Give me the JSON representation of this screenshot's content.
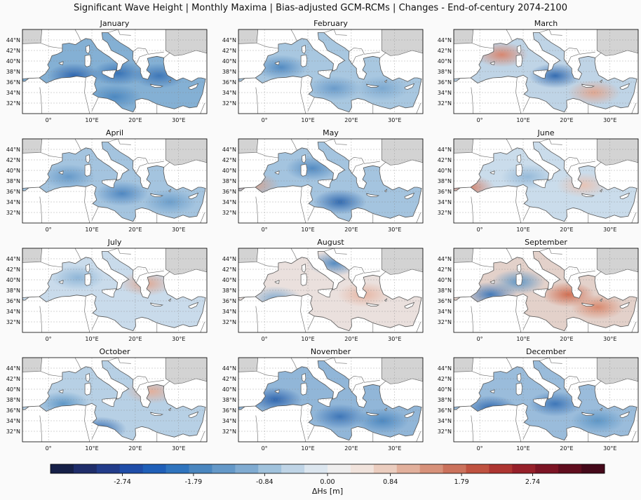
{
  "figure": {
    "title": "Significant Wave Height | Monthly Maxima | Bias-adjusted GCM-RCMs | Changes - End-of-century 2074-2100"
  },
  "map_axes": {
    "lat_labels": [
      "44°N",
      "42°N",
      "40°N",
      "38°N",
      "36°N",
      "34°N",
      "32°N"
    ],
    "lon_labels": [
      "0°",
      "10°E",
      "20°E",
      "30°E"
    ]
  },
  "panels": [
    {
      "month": "January",
      "tint": "#5b95c6",
      "signal": "decrease",
      "hotspots": [
        [
          "#2c63ad",
          0.28,
          0.55
        ],
        [
          "#3570b4",
          0.52,
          0.52
        ],
        [
          "#3b74b6",
          0.74,
          0.55
        ],
        [
          "#4a86bf",
          0.5,
          0.8
        ]
      ]
    },
    {
      "month": "February",
      "tint": "#8bb4d6",
      "signal": "decrease",
      "hotspots": [
        [
          "#4f88c0",
          0.23,
          0.45
        ],
        [
          "#6799c9",
          0.52,
          0.7
        ],
        [
          "#7aa7cf",
          0.78,
          0.7
        ]
      ]
    },
    {
      "month": "March",
      "tint": "#a9c6de",
      "signal": "mixed",
      "hotspots": [
        [
          "#d9836a",
          0.26,
          0.3
        ],
        [
          "#2e67ae",
          0.55,
          0.55
        ],
        [
          "#e2a58d",
          0.76,
          0.75
        ]
      ]
    },
    {
      "month": "April",
      "tint": "#86b0d4",
      "signal": "decrease",
      "hotspots": [
        [
          "#4b84bf",
          0.54,
          0.65
        ],
        [
          "#6498c8",
          0.25,
          0.45
        ],
        [
          "#6a9dca",
          0.8,
          0.75
        ]
      ]
    },
    {
      "month": "May",
      "tint": "#86b0d4",
      "signal": "decrease",
      "hotspots": [
        [
          "#2d66ad",
          0.55,
          0.75
        ],
        [
          "#4f88c0",
          0.4,
          0.35
        ],
        [
          "#d7a08a",
          0.08,
          0.55
        ]
      ]
    },
    {
      "month": "June",
      "tint": "#b8d0e4",
      "signal": "mixed",
      "hotspots": [
        [
          "#d47c63",
          0.08,
          0.58
        ],
        [
          "#e9c2b2",
          0.7,
          0.55
        ],
        [
          "#93b8d8",
          0.4,
          0.45
        ]
      ]
    },
    {
      "month": "July",
      "tint": "#b7cfe4",
      "signal": "decrease",
      "hotspots": [
        [
          "#e0a58e",
          0.67,
          0.42
        ],
        [
          "#8cb4d6",
          0.3,
          0.35
        ]
      ]
    },
    {
      "month": "August",
      "tint": "#e3d6d1",
      "signal": "increase",
      "hotspots": [
        [
          "#e6b3a0",
          0.68,
          0.55
        ],
        [
          "#4f88c0",
          0.52,
          0.18
        ],
        [
          "#7ea9d0",
          0.2,
          0.6
        ]
      ]
    },
    {
      "month": "September",
      "tint": "#d9c2b8",
      "signal": "mixed",
      "hotspots": [
        [
          "#cf6a4d",
          0.62,
          0.55
        ],
        [
          "#3c76b8",
          0.2,
          0.55
        ],
        [
          "#d8866a",
          0.78,
          0.7
        ],
        [
          "#5b95c6",
          0.35,
          0.4
        ]
      ]
    },
    {
      "month": "October",
      "tint": "#9fc0dc",
      "signal": "decrease",
      "hotspots": [
        [
          "#2e67ae",
          0.42,
          0.85
        ],
        [
          "#e4ae98",
          0.7,
          0.4
        ],
        [
          "#5b95c6",
          0.22,
          0.55
        ]
      ]
    },
    {
      "month": "November",
      "tint": "#6c9ecb",
      "signal": "decrease",
      "hotspots": [
        [
          "#2c63ad",
          0.2,
          0.5
        ],
        [
          "#3a73b6",
          0.55,
          0.7
        ],
        [
          "#4a86bf",
          0.78,
          0.75
        ]
      ]
    },
    {
      "month": "December",
      "tint": "#78a6cf",
      "signal": "decrease",
      "hotspots": [
        [
          "#2e67ae",
          0.2,
          0.6
        ],
        [
          "#3a73b6",
          0.55,
          0.55
        ],
        [
          "#5b95c6",
          0.78,
          0.75
        ]
      ]
    }
  ],
  "colorbar": {
    "label": "ΔHs [m]",
    "ticks": [
      "-2.74",
      "-1.79",
      "-0.84",
      "0.00",
      "0.84",
      "1.79",
      "2.74"
    ],
    "tick_values": [
      -2.74,
      -1.79,
      -0.84,
      0.0,
      0.84,
      1.79,
      2.74
    ],
    "range": [
      -3.7,
      3.7
    ],
    "colors": [
      "#162048",
      "#1f2d6a",
      "#223c8a",
      "#1f4da8",
      "#1f5fb8",
      "#2f74be",
      "#4a86bf",
      "#6498c8",
      "#80abd1",
      "#a0c2dc",
      "#bfd4e6",
      "#dce6ef",
      "#efeeee",
      "#f1e3dc",
      "#ebcdbf",
      "#e2b09c",
      "#d7917a",
      "#cb725c",
      "#bf5240",
      "#ad3531",
      "#96202a",
      "#7c1424",
      "#600d1e",
      "#45091a"
    ]
  }
}
